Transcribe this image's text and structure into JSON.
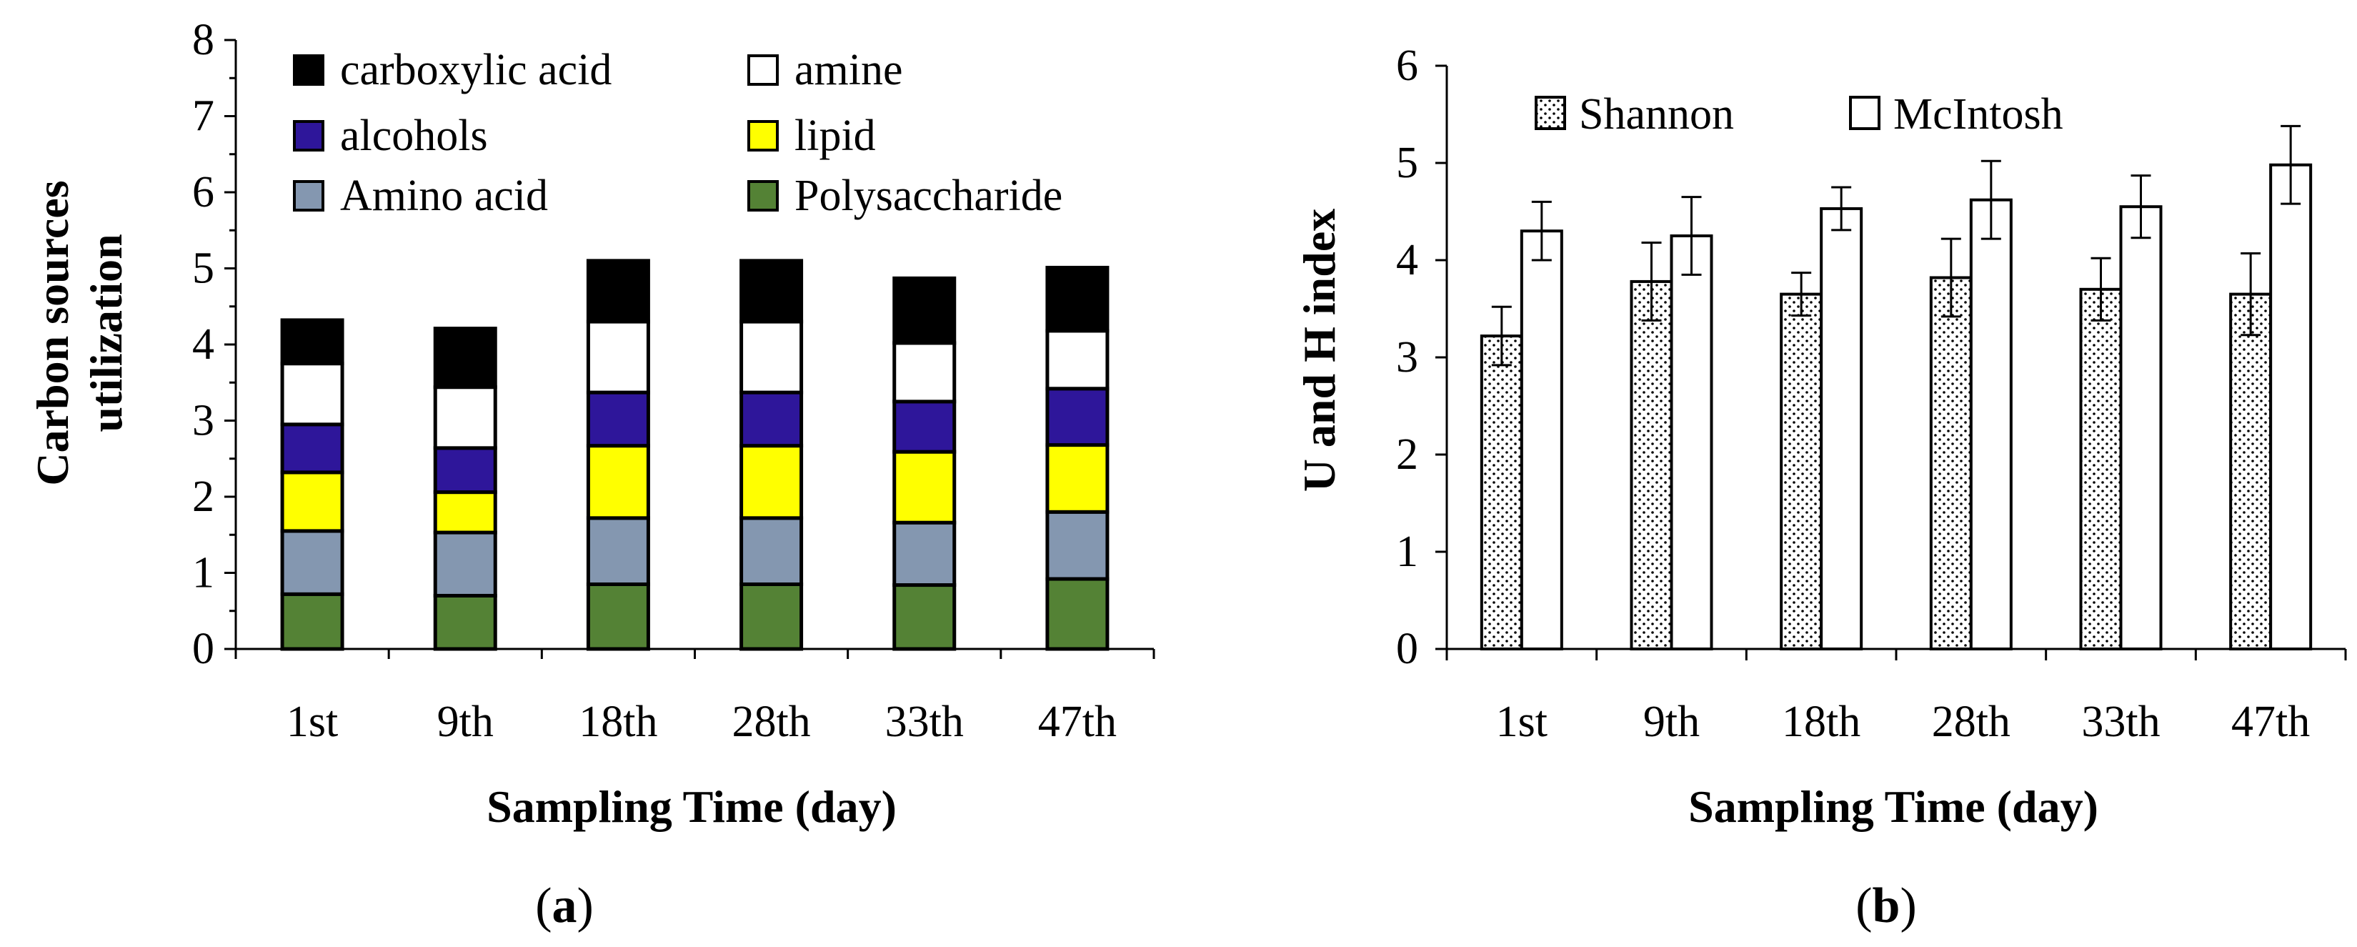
{
  "chart_data": [
    {
      "type": "bar",
      "stacked": true,
      "panel_label": "a",
      "title": "",
      "xlabel": "Sampling  Time (day)",
      "ylabel_lines": [
        "Carbon  sources",
        "utilization"
      ],
      "ylim": [
        0,
        8
      ],
      "yticks": [
        "0",
        "1",
        "2",
        "3",
        "4",
        "5",
        "6",
        "7",
        "8"
      ],
      "categories": [
        "1st",
        "9th",
        "18th",
        "28th",
        "33th",
        "47th"
      ],
      "legend_position": "top",
      "series": [
        {
          "name": "Polysaccharide",
          "color": "#548235",
          "values": [
            0.72,
            0.7,
            0.85,
            0.85,
            0.84,
            0.92
          ]
        },
        {
          "name": "Amino acid",
          "color": "#8497b0",
          "values": [
            0.83,
            0.83,
            0.87,
            0.87,
            0.82,
            0.88
          ]
        },
        {
          "name": "lipid",
          "color": "#ffff00",
          "values": [
            0.77,
            0.53,
            0.95,
            0.95,
            0.93,
            0.88
          ]
        },
        {
          "name": "alcohols",
          "color": "#2e169a",
          "values": [
            0.63,
            0.58,
            0.7,
            0.7,
            0.66,
            0.74
          ]
        },
        {
          "name": "amine",
          "color": "#ffffff",
          "values": [
            0.8,
            0.8,
            0.93,
            0.93,
            0.77,
            0.76
          ]
        },
        {
          "name": "carboxylic acid",
          "color": "#000000",
          "values": [
            0.57,
            0.77,
            0.8,
            0.8,
            0.85,
            0.83
          ]
        }
      ],
      "legend_order": [
        "carboxylic acid",
        "amine",
        "alcohols",
        "lipid",
        "Amino acid",
        "Polysaccharide"
      ]
    },
    {
      "type": "bar",
      "stacked": false,
      "panel_label": "b",
      "title": "",
      "xlabel": "Sampling  Time (day)",
      "ylabel": "U and H index",
      "ylim": [
        0,
        6
      ],
      "yticks": [
        "0",
        "1",
        "2",
        "3",
        "4",
        "5",
        "6"
      ],
      "categories": [
        "1st",
        "9th",
        "18th",
        "28th",
        "33th",
        "47th"
      ],
      "legend_position": "top",
      "series": [
        {
          "name": "Shannon",
          "fill": "dotted",
          "values": [
            3.22,
            3.78,
            3.65,
            3.82,
            3.7,
            3.65
          ],
          "errors": [
            0.3,
            0.4,
            0.22,
            0.4,
            0.32,
            0.42
          ]
        },
        {
          "name": "McIntosh",
          "fill": "white",
          "values": [
            4.3,
            4.25,
            4.53,
            4.62,
            4.55,
            4.98
          ],
          "errors": [
            0.3,
            0.4,
            0.22,
            0.4,
            0.32,
            0.4
          ]
        }
      ]
    }
  ]
}
